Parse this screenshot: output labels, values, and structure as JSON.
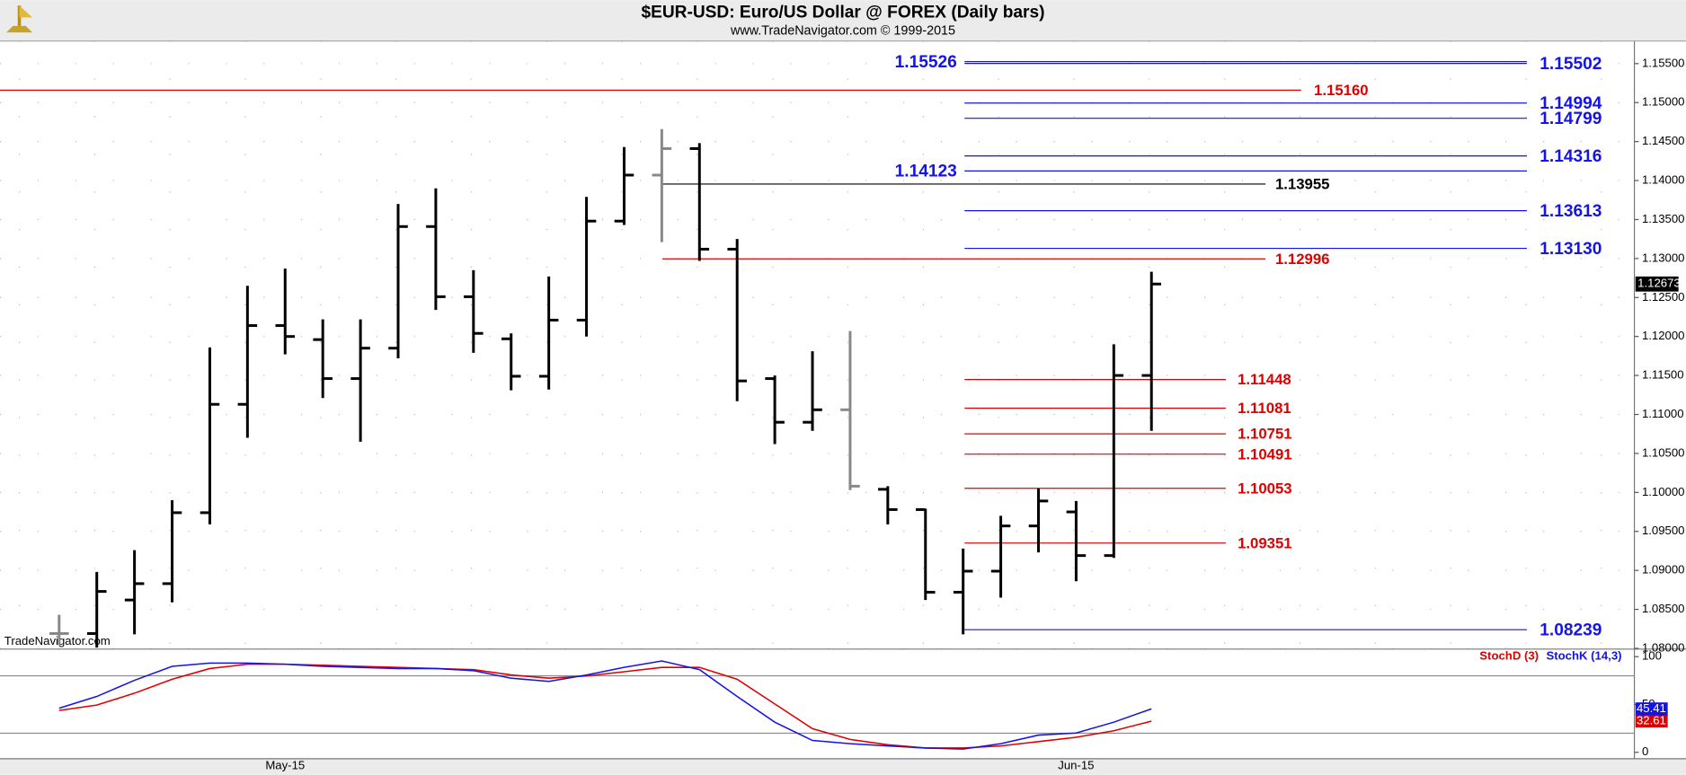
{
  "chart_data": {
    "type": "ohlc",
    "title": "$EUR-USD:  Euro/US Dollar @ FOREX  (Daily bars)",
    "subtitle": "www.TradeNavigator.com © 1999-2015",
    "watermark": "TradeNavigator.com",
    "categories": [
      null,
      null,
      null,
      null,
      null,
      null,
      "May-15",
      null,
      null,
      null,
      null,
      null,
      null,
      null,
      null,
      null,
      null,
      null,
      null,
      null,
      null,
      null,
      null,
      null,
      null,
      null,
      null,
      "Jun-15",
      null,
      null
    ],
    "open": [
      1.0819,
      1.0819,
      1.0862,
      1.0883,
      1.0974,
      1.1113,
      1.1214,
      1.1196,
      1.1146,
      1.1185,
      1.1341,
      1.1251,
      1.1197,
      1.1149,
      1.1221,
      1.1348,
      1.1407,
      1.1441,
      1.1312,
      1.1146,
      1.109,
      1.1106,
      1.1004,
      1.0978,
      1.0872,
      1.0899,
      1.0957,
      1.0975,
      1.0919,
      1.115
    ],
    "high": [
      1.0843,
      1.0898,
      1.0926,
      1.099,
      1.1186,
      1.1265,
      1.1287,
      1.1222,
      1.1222,
      1.137,
      1.139,
      1.1285,
      1.1204,
      1.1277,
      1.1379,
      1.1443,
      1.1466,
      1.1448,
      1.1325,
      1.115,
      1.1181,
      1.1207,
      1.1008,
      1.0979,
      1.0928,
      1.097,
      1.1005,
      1.0989,
      1.119,
      1.1283
    ],
    "low": [
      1.0804,
      1.0801,
      1.0818,
      1.0859,
      1.0959,
      1.107,
      1.1177,
      1.1121,
      1.1065,
      1.1172,
      1.1234,
      1.1179,
      1.1131,
      1.1132,
      1.12,
      1.1343,
      1.1321,
      1.1297,
      1.1117,
      1.1062,
      1.1079,
      1.1003,
      1.0959,
      1.0862,
      1.0818,
      1.0865,
      1.0923,
      1.0886,
      1.0916,
      1.1079
    ],
    "close": [
      1.0819,
      1.0873,
      1.0883,
      1.0974,
      1.1113,
      1.1214,
      1.12,
      1.1146,
      1.1185,
      1.1341,
      1.1251,
      1.1204,
      1.1149,
      1.1221,
      1.1348,
      1.1407,
      1.1441,
      1.1312,
      1.1143,
      1.109,
      1.1106,
      1.1008,
      1.0978,
      1.0872,
      1.0899,
      1.0957,
      1.0989,
      1.0919,
      1.115,
      1.12673
    ],
    "bar_colors": [
      "#888888",
      "#000000",
      "#000000",
      "#000000",
      "#000000",
      "#000000",
      "#000000",
      "#000000",
      "#000000",
      "#000000",
      "#000000",
      "#000000",
      "#000000",
      "#000000",
      "#000000",
      "#000000",
      "#888888",
      "#000000",
      "#000000",
      "#000000",
      "#000000",
      "#888888",
      "#000000",
      "#000000",
      "#000000",
      "#000000",
      "#000000",
      "#000000",
      "#000000",
      "#000000"
    ],
    "ylim": [
      1.0799,
      1.1579
    ],
    "yticks": [
      {
        "value": 1.08,
        "label": "1.08000"
      },
      {
        "value": 1.085,
        "label": "1.08500"
      },
      {
        "value": 1.09,
        "label": "1.09000"
      },
      {
        "value": 1.095,
        "label": "1.09500"
      },
      {
        "value": 1.1,
        "label": "1.10000"
      },
      {
        "value": 1.105,
        "label": "1.10500"
      },
      {
        "value": 1.11,
        "label": "1.11000"
      },
      {
        "value": 1.115,
        "label": "1.11500"
      },
      {
        "value": 1.12,
        "label": "1.12000"
      },
      {
        "value": 1.125,
        "label": "1.12500"
      },
      {
        "value": 1.13,
        "label": "1.13000"
      },
      {
        "value": 1.135,
        "label": "1.13500"
      },
      {
        "value": 1.14,
        "label": "1.14000"
      },
      {
        "value": 1.145,
        "label": "1.14500"
      },
      {
        "value": 1.15,
        "label": "1.15000"
      },
      {
        "value": 1.155,
        "label": "1.15500"
      }
    ],
    "grid": true,
    "levels": [
      {
        "value": 1.15526,
        "label": "1.15526",
        "color": "#1414e6"
      },
      {
        "value": 1.15502,
        "label": "1.15502",
        "color": "#1414e6"
      },
      {
        "value": 1.1516,
        "label": "1.15160",
        "color": "#e00000"
      },
      {
        "value": 1.14994,
        "label": "1.14994",
        "color": "#1414e6"
      },
      {
        "value": 1.14799,
        "label": "1.14799",
        "color": "#1414e6"
      },
      {
        "value": 1.14316,
        "label": "1.14316",
        "color": "#1414e6"
      },
      {
        "value": 1.14123,
        "label": "1.14123",
        "color": "#1414e6"
      },
      {
        "value": 1.13955,
        "label": "1.13955",
        "color": "#000000"
      },
      {
        "value": 1.13613,
        "label": "1.13613",
        "color": "#1414e6"
      },
      {
        "value": 1.1313,
        "label": "1.13130",
        "color": "#1414e6"
      },
      {
        "value": 1.12996,
        "label": "1.12996",
        "color": "#e00000"
      },
      {
        "value": 1.11448,
        "label": "1.11448",
        "color": "#e00000"
      },
      {
        "value": 1.11081,
        "label": "1.11081",
        "color": "#e00000"
      },
      {
        "value": 1.10751,
        "label": "1.10751",
        "color": "#e00000"
      },
      {
        "value": 1.10491,
        "label": "1.10491",
        "color": "#e00000"
      },
      {
        "value": 1.10053,
        "label": "1.10053",
        "color": "#e00000"
      },
      {
        "value": 1.09351,
        "label": "1.09351",
        "color": "#e00000"
      },
      {
        "value": 1.08239,
        "label": "1.08239",
        "color": "#1414e6"
      }
    ],
    "stochastic": {
      "ylim": [
        -6.7,
        107.9
      ],
      "yticks": [
        0,
        50,
        100
      ],
      "levels": [
        20,
        80
      ],
      "series": [
        {
          "name": "StochD (3)",
          "color": "#e00000",
          "values": [
            43.8,
            49.4,
            61.8,
            76.4,
            87.6,
            92.1,
            92.1,
            91.0,
            89.9,
            88.8,
            87.6,
            86.5,
            80.9,
            77.5,
            79.8,
            84.3,
            88.8,
            88.8,
            76.4,
            50.6,
            24.7,
            13.5,
            7.9,
            4.5,
            4.5,
            6.7,
            11.2,
            15.7,
            22.5,
            32.61
          ]
        },
        {
          "name": "StochK (14,3)",
          "color": "#1414e6",
          "values": [
            46.1,
            58.4,
            75.3,
            89.9,
            93.3,
            93.3,
            92.1,
            89.9,
            88.8,
            87.6,
            87.6,
            85.4,
            77.5,
            74.2,
            80.9,
            88.8,
            95.5,
            86.5,
            58.4,
            31.5,
            12.4,
            9.0,
            6.7,
            4.5,
            3.4,
            9.0,
            18.0,
            20.2,
            31.5,
            45.41
          ]
        }
      ]
    }
  }
}
